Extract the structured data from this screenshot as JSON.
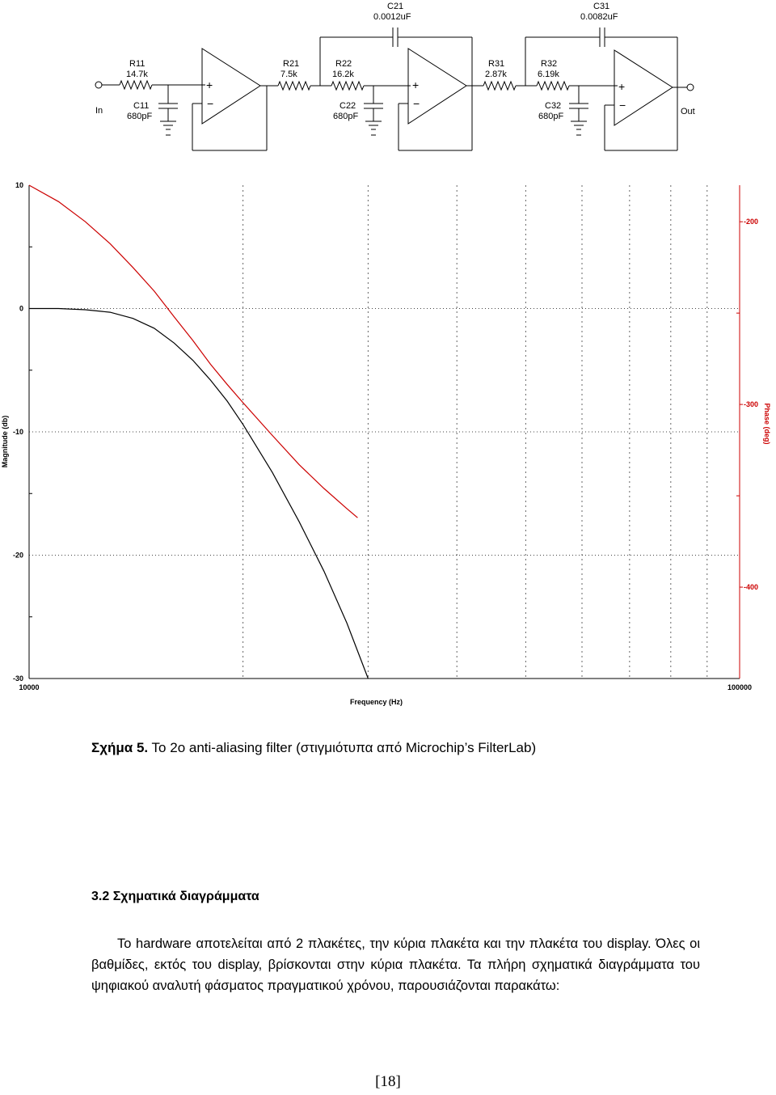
{
  "schematic": {
    "input_label": "In",
    "output_label": "Out",
    "components": {
      "R11": {
        "name": "R11",
        "value": "14.7k"
      },
      "C11": {
        "name": "C11",
        "value": "680pF"
      },
      "R21": {
        "name": "R21",
        "value": "7.5k"
      },
      "R22": {
        "name": "R22",
        "value": "16.2k"
      },
      "C21": {
        "name": "C21",
        "value": "0.0012uF"
      },
      "C22": {
        "name": "C22",
        "value": "680pF"
      },
      "R31": {
        "name": "R31",
        "value": "2.87k"
      },
      "R32": {
        "name": "R32",
        "value": "6.19k"
      },
      "C31": {
        "name": "C31",
        "value": "0.0082uF"
      },
      "C32": {
        "name": "C32",
        "value": "680pF"
      }
    }
  },
  "chart_data": {
    "type": "line",
    "xlabel": "Frequency (Hz)",
    "ylabel": "Magnitude (db)",
    "y2label": "Phase (deg)",
    "xscale": "log",
    "xlim": [
      10000,
      100000
    ],
    "ylim": [
      -30,
      10
    ],
    "y2lim": [
      -450,
      -180
    ],
    "x_tick_labels": [
      "10000",
      "100000"
    ],
    "y_tick_labels": [
      "10",
      "0",
      "-10",
      "-20",
      "-30"
    ],
    "y2_tick_labels": [
      "-200",
      "-300",
      "-400"
    ],
    "y_ticks": [
      10,
      0,
      -10,
      -20,
      -30
    ],
    "y2_ticks": [
      -200,
      -300,
      -400
    ],
    "grid": true,
    "colors": {
      "magnitude": "#000000",
      "phase": "#cc0000",
      "phase_axis": "#cc0000"
    },
    "series": [
      {
        "axis": "left",
        "x": [
          10000,
          11000,
          12000,
          13000,
          14000,
          15000,
          16000,
          17000,
          18000,
          19000,
          20000,
          22000,
          24000,
          26000,
          28000,
          30000
        ],
        "y": [
          0,
          0,
          -0.1,
          -0.3,
          -0.8,
          -1.6,
          -2.8,
          -4.2,
          -5.8,
          -7.5,
          -9.4,
          -13.3,
          -17.3,
          -21.3,
          -25.5,
          -30
        ]
      },
      {
        "axis": "right",
        "x": [
          10000,
          11000,
          12000,
          13000,
          14000,
          15000,
          16000,
          17000,
          18000,
          19000,
          20000,
          22000,
          24000,
          26000,
          28000,
          29000
        ],
        "y": [
          -180,
          -189,
          -200,
          -212,
          -225,
          -238,
          -252,
          -265,
          -278,
          -289,
          -299,
          -317,
          -333,
          -346,
          -357,
          -362
        ]
      }
    ]
  },
  "caption": {
    "label": "Σχήμα 5.",
    "text": " Το 2ο anti-aliasing filter  (στιγμιότυπα από Microchip’s FilterLab)"
  },
  "section": {
    "heading": "3.2 Σχηματικά διαγράμματα",
    "paragraph": "Το hardware αποτελείται από 2 πλακέτες, την κύρια  πλακέτα και την πλακέτα του display. Όλες οι βαθμίδες, εκτός του display, βρίσκονται στην κύρια πλακέτα. Τα πλήρη σχηματικά διαγράμματα του ψηφιακού αναλυτή φάσματος πραγματικού χρόνου, παρουσιάζονται παρακάτω:"
  },
  "page_number": "[18]"
}
